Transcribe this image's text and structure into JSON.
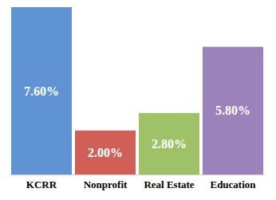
{
  "chart_data": {
    "type": "bar",
    "categories": [
      "KCRR",
      "Nonprofit",
      "Real Estate",
      "Education"
    ],
    "values": [
      7.6,
      2.0,
      2.8,
      5.8
    ],
    "value_labels": [
      "7.60%",
      "2.00%",
      "2.80%",
      "5.80%"
    ],
    "colors": [
      "#5f93d3",
      "#cf5f57",
      "#9fc167",
      "#9b82ba"
    ],
    "ylim": [
      0,
      7.6
    ],
    "grid": false,
    "data_labels": true,
    "tick_labels": "x"
  }
}
